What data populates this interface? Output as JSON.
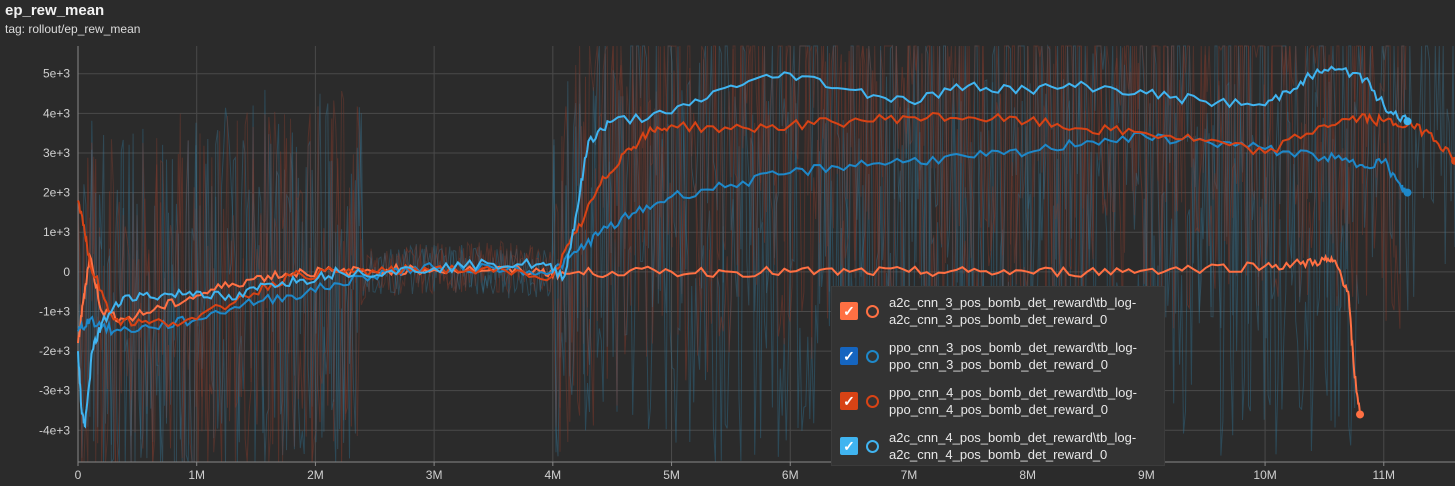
{
  "header": {
    "title": "ep_rew_mean",
    "subtitle": "tag: rollout/ep_rew_mean"
  },
  "chart_data": {
    "type": "line",
    "title": "ep_rew_mean",
    "xlim": [
      0,
      11600000
    ],
    "ylim": [
      -4800,
      5700
    ],
    "x_ticks": [
      {
        "value": 0,
        "label": "0"
      },
      {
        "value": 1000000,
        "label": "1M"
      },
      {
        "value": 2000000,
        "label": "2M"
      },
      {
        "value": 3000000,
        "label": "3M"
      },
      {
        "value": 4000000,
        "label": "4M"
      },
      {
        "value": 5000000,
        "label": "5M"
      },
      {
        "value": 6000000,
        "label": "6M"
      },
      {
        "value": 7000000,
        "label": "7M"
      },
      {
        "value": 8000000,
        "label": "8M"
      },
      {
        "value": 9000000,
        "label": "9M"
      },
      {
        "value": 10000000,
        "label": "10M"
      },
      {
        "value": 11000000,
        "label": "11M"
      }
    ],
    "y_ticks": [
      {
        "value": 5000,
        "label": "5e+3"
      },
      {
        "value": 4000,
        "label": "4e+3"
      },
      {
        "value": 3000,
        "label": "3e+3"
      },
      {
        "value": 2000,
        "label": "2e+3"
      },
      {
        "value": 1000,
        "label": "1e+3"
      },
      {
        "value": 0,
        "label": "0"
      },
      {
        "value": -1000,
        "label": "-1e+3"
      },
      {
        "value": -2000,
        "label": "-2e+3"
      },
      {
        "value": -3000,
        "label": "-3e+3"
      },
      {
        "value": -4000,
        "label": "-4e+3"
      }
    ],
    "grid": true,
    "legend_position": "bottom-right",
    "series": [
      {
        "name": "a2c_cnn_3_pos_bomb_det_reward\\tb_log-\na2c_cnn_3_pos_bomb_det_reward_0",
        "color": "#ff7043",
        "x": [
          0,
          50000,
          100000,
          200000,
          400000,
          700000,
          1000000,
          1300000,
          1600000,
          1900000,
          2200000,
          2600000,
          3000000,
          3500000,
          3900000,
          4100000,
          4500000,
          5000000,
          5500000,
          6000000,
          6500000,
          7000000,
          7500000,
          8000000,
          8500000,
          9000000,
          9500000,
          10000000,
          10300000,
          10500000,
          10600000,
          10700000,
          10750000,
          10800000
        ],
        "y": [
          -1800,
          -600,
          400,
          -1000,
          -1200,
          -900,
          -600,
          -300,
          -100,
          0,
          0,
          50,
          50,
          50,
          0,
          -50,
          0,
          0,
          0,
          0,
          0,
          0,
          0,
          0,
          0,
          50,
          100,
          150,
          200,
          300,
          200,
          -500,
          -2500,
          -3600
        ]
      },
      {
        "name": "ppo_cnn_3_pos_bomb_det_reward\\tb_log-\nppo_cnn_3_pos_bomb_det_reward_0",
        "color": "#1e88c9",
        "x": [
          0,
          100000,
          300000,
          600000,
          1000000,
          1400000,
          1800000,
          2200000,
          2600000,
          3000000,
          3500000,
          4000000,
          4200000,
          4400000,
          4700000,
          5000000,
          5500000,
          6000000,
          6500000,
          7000000,
          7500000,
          8000000,
          8500000,
          9000000,
          9500000,
          10000000,
          10500000,
          10800000,
          11000000,
          11150000,
          11200000
        ],
        "y": [
          -1500,
          -1200,
          -1500,
          -1400,
          -1200,
          -800,
          -600,
          -300,
          0,
          100,
          100,
          0,
          500,
          1000,
          1500,
          1900,
          2200,
          2500,
          2700,
          2800,
          2900,
          3000,
          3300,
          3400,
          3300,
          3100,
          2900,
          2700,
          2800,
          2100,
          2000
        ]
      },
      {
        "name": "ppo_cnn_4_pos_bomb_det_reward\\tb_log-\nppo_cnn_4_pos_bomb_det_reward_0",
        "color": "#d84315",
        "x": [
          0,
          50000,
          100000,
          300000,
          600000,
          1000000,
          1400000,
          1800000,
          2200000,
          2600000,
          3000000,
          3500000,
          4000000,
          4200000,
          4400000,
          4600000,
          4800000,
          5000000,
          5500000,
          6000000,
          6500000,
          7000000,
          7500000,
          8000000,
          8500000,
          9000000,
          9500000,
          10000000,
          10500000,
          10800000,
          11000000,
          11200000,
          11400000,
          11600000
        ],
        "y": [
          1800,
          1200,
          200,
          -1200,
          -1300,
          -1200,
          -600,
          -100,
          0,
          0,
          100,
          0,
          -100,
          1000,
          2200,
          3000,
          3500,
          3700,
          3600,
          3700,
          3800,
          3900,
          3900,
          3800,
          3600,
          3500,
          3300,
          3000,
          3700,
          3900,
          3800,
          3700,
          3500,
          2800
        ]
      },
      {
        "name": "a2c_cnn_4_pos_bomb_det_reward\\tb_log-\na2c_cnn_4_pos_bomb_det_reward_0",
        "color": "#40b4f0",
        "x": [
          0,
          30000,
          60000,
          120000,
          200000,
          400000,
          700000,
          1000000,
          1300000,
          1600000,
          1900000,
          2200000,
          2600000,
          3000000,
          3500000,
          3900000,
          4100000,
          4200000,
          4300000,
          4500000,
          5000000,
          5500000,
          6000000,
          6500000,
          7000000,
          7500000,
          8000000,
          8500000,
          9000000,
          9500000,
          10000000,
          10300000,
          10500000,
          10800000,
          11000000,
          11200000
        ],
        "y": [
          -2000,
          -3500,
          -3900,
          -2000,
          -1300,
          -600,
          -600,
          -500,
          -700,
          -300,
          -200,
          0,
          0,
          100,
          200,
          200,
          -100,
          1500,
          3300,
          3800,
          4000,
          4700,
          5000,
          4600,
          4300,
          4700,
          4600,
          4700,
          4500,
          4300,
          4200,
          4800,
          5100,
          5000,
          4200,
          3800
        ]
      }
    ],
    "noise_series_colors": [
      "#2f6e8e",
      "#8a3a2a",
      "#3a6f8a",
      "#7a3b2e"
    ]
  },
  "legend": {
    "items": [
      {
        "label": "a2c_cnn_3_pos_bomb_det_reward\\tb_log-\na2c_cnn_3_pos_bomb_det_reward_0",
        "color": "#ff7043",
        "checkbox_color": "#ff7043"
      },
      {
        "label": "ppo_cnn_3_pos_bomb_det_reward\\tb_log-\nppo_cnn_3_pos_bomb_det_reward_0",
        "color": "#1e88c9",
        "checkbox_color": "#1565c0"
      },
      {
        "label": "ppo_cnn_4_pos_bomb_det_reward\\tb_log-\nppo_cnn_4_pos_bomb_det_reward_0",
        "color": "#d84315",
        "checkbox_color": "#d84315"
      },
      {
        "label": "a2c_cnn_4_pos_bomb_det_reward\\tb_log-\na2c_cnn_4_pos_bomb_det_reward_0",
        "color": "#40b4f0",
        "checkbox_color": "#40b4f0"
      }
    ]
  }
}
